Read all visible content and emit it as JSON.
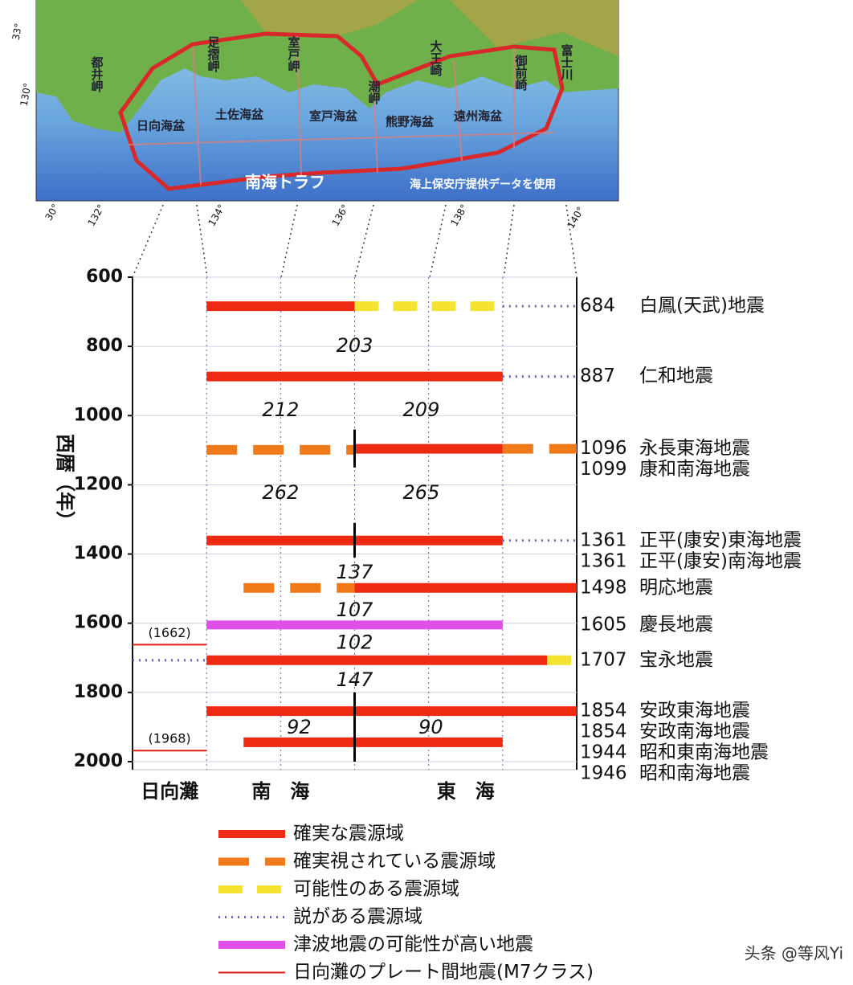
{
  "map": {
    "labels": [
      "都井岬",
      "足摺岬",
      "室戸岬",
      "潮岬",
      "大王崎",
      "御前崎",
      "富士川",
      "日向海盆",
      "土佐海盆",
      "室戸海盆",
      "熊野海盆",
      "遠州海盆",
      "南海トラフ",
      "海上保安庁提供データを使用"
    ],
    "ticks": [
      "33°",
      "130°",
      "30°",
      "132°",
      "134°",
      "136°",
      "138°",
      "140°"
    ]
  },
  "chart_data": {
    "type": "timeline",
    "ylabel": "西暦（年）",
    "ylim": [
      600,
      2000
    ],
    "yticks": [
      600,
      800,
      1000,
      1200,
      1400,
      1600,
      1800,
      2000
    ],
    "xlim": [
      0,
      6
    ],
    "boundaries": [
      1,
      2,
      3,
      4,
      5
    ],
    "grid": true,
    "zones": [
      {
        "label": "日向灘",
        "x": 0.5
      },
      {
        "label": "南　海",
        "x": 2
      },
      {
        "label": "東　海",
        "x": 4.5
      }
    ],
    "styles": [
      {
        "key": "certain",
        "name": "確実な震源域",
        "color": "#ee2a12",
        "width": 12,
        "dash": "none"
      },
      {
        "key": "probable",
        "name": "確実視されている震源域",
        "color": "#f07a1a",
        "width": 12,
        "dash": "38,20"
      },
      {
        "key": "possible",
        "name": "可能性のある震源域",
        "color": "#f5e332",
        "width": 12,
        "dash": "30,18"
      },
      {
        "key": "theory",
        "name": "説がある震源域",
        "color": "#7a5cb8",
        "width": 3,
        "dash": "2,6"
      },
      {
        "key": "tsunami",
        "name": "津波地震の可能性が高い地震",
        "color": "#e050e8",
        "width": 11,
        "dash": "none"
      },
      {
        "key": "m7",
        "name": "日向灘のプレート間地震(M7クラス)",
        "color": "#e02010",
        "width": 2,
        "dash": "none"
      }
    ],
    "segments": [
      {
        "style": "certain",
        "x": [
          1,
          3
        ],
        "y": 684
      },
      {
        "style": "possible",
        "x": [
          3,
          5
        ],
        "y": 684
      },
      {
        "style": "theory",
        "x": [
          5,
          6
        ],
        "y": 684
      },
      {
        "style": "certain",
        "x": [
          1,
          5
        ],
        "y": 887
      },
      {
        "style": "theory",
        "x": [
          5,
          6
        ],
        "y": 887
      },
      {
        "style": "probable",
        "x": [
          1,
          3
        ],
        "y": 1099
      },
      {
        "style": "certain",
        "x": [
          3,
          5
        ],
        "y": 1096
      },
      {
        "style": "probable",
        "x": [
          5,
          6
        ],
        "y": 1096
      },
      {
        "style": "certain",
        "x": [
          1,
          5
        ],
        "y": 1361
      },
      {
        "style": "theory",
        "x": [
          5,
          6
        ],
        "y": 1361
      },
      {
        "style": "probable",
        "x": [
          1.5,
          3
        ],
        "y": 1498
      },
      {
        "style": "certain",
        "x": [
          3,
          6
        ],
        "y": 1498
      },
      {
        "style": "tsunami",
        "x": [
          1,
          5
        ],
        "y": 1605
      },
      {
        "style": "m7",
        "x": [
          0,
          1
        ],
        "y": 1662,
        "label": "(1662)"
      },
      {
        "style": "theory",
        "x": [
          0,
          1
        ],
        "y": 1707
      },
      {
        "style": "certain",
        "x": [
          1,
          5.6
        ],
        "y": 1707
      },
      {
        "style": "possible",
        "x": [
          5.6,
          6
        ],
        "y": 1707
      },
      {
        "style": "certain",
        "x": [
          1,
          6
        ],
        "y": 1854
      },
      {
        "style": "certain",
        "x": [
          1.5,
          5
        ],
        "y": 1944
      },
      {
        "style": "m7",
        "x": [
          0,
          1
        ],
        "y": 1968,
        "label": "(1968)"
      }
    ],
    "dividers": [
      {
        "x": 3,
        "y": [
          1040,
          1150
        ]
      },
      {
        "x": 3,
        "y": [
          1310,
          1410
        ]
      },
      {
        "x": 3,
        "y": [
          1800,
          2000
        ]
      }
    ],
    "intervals": [
      {
        "value": 203,
        "x": 3,
        "y": 800
      },
      {
        "value": 212,
        "x": 2,
        "y": 985
      },
      {
        "value": 209,
        "x": 3.9,
        "y": 985
      },
      {
        "value": 262,
        "x": 2,
        "y": 1225
      },
      {
        "value": 265,
        "x": 3.9,
        "y": 1225
      },
      {
        "value": 137,
        "x": 3,
        "y": 1454
      },
      {
        "value": 107,
        "x": 3,
        "y": 1564
      },
      {
        "value": 102,
        "x": 3,
        "y": 1657
      },
      {
        "value": 147,
        "x": 3,
        "y": 1765
      },
      {
        "value": 92,
        "x": 2.25,
        "y": 1902
      },
      {
        "value": 90,
        "x": 4.03,
        "y": 1902
      }
    ],
    "events": [
      {
        "year": 684,
        "name": "白鳳(天武)地震"
      },
      {
        "year": 887,
        "name": "仁和地震"
      },
      {
        "year": 1096,
        "name": "永長東海地震"
      },
      {
        "year": 1099,
        "name": "康和南海地震"
      },
      {
        "year": 1361,
        "name": "正平(康安)東海地震"
      },
      {
        "year": 1361,
        "name": "正平(康安)南海地震"
      },
      {
        "year": 1498,
        "name": "明応地震"
      },
      {
        "year": 1605,
        "name": "慶長地震"
      },
      {
        "year": 1707,
        "name": "宝永地震"
      },
      {
        "year": 1854,
        "name": "安政東海地震"
      },
      {
        "year": 1854,
        "name": "安政南海地震"
      },
      {
        "year": 1944,
        "name": "昭和東南海地震"
      },
      {
        "year": 1946,
        "name": "昭和南海地震"
      }
    ]
  },
  "watermark": "头条 @等风Yi"
}
